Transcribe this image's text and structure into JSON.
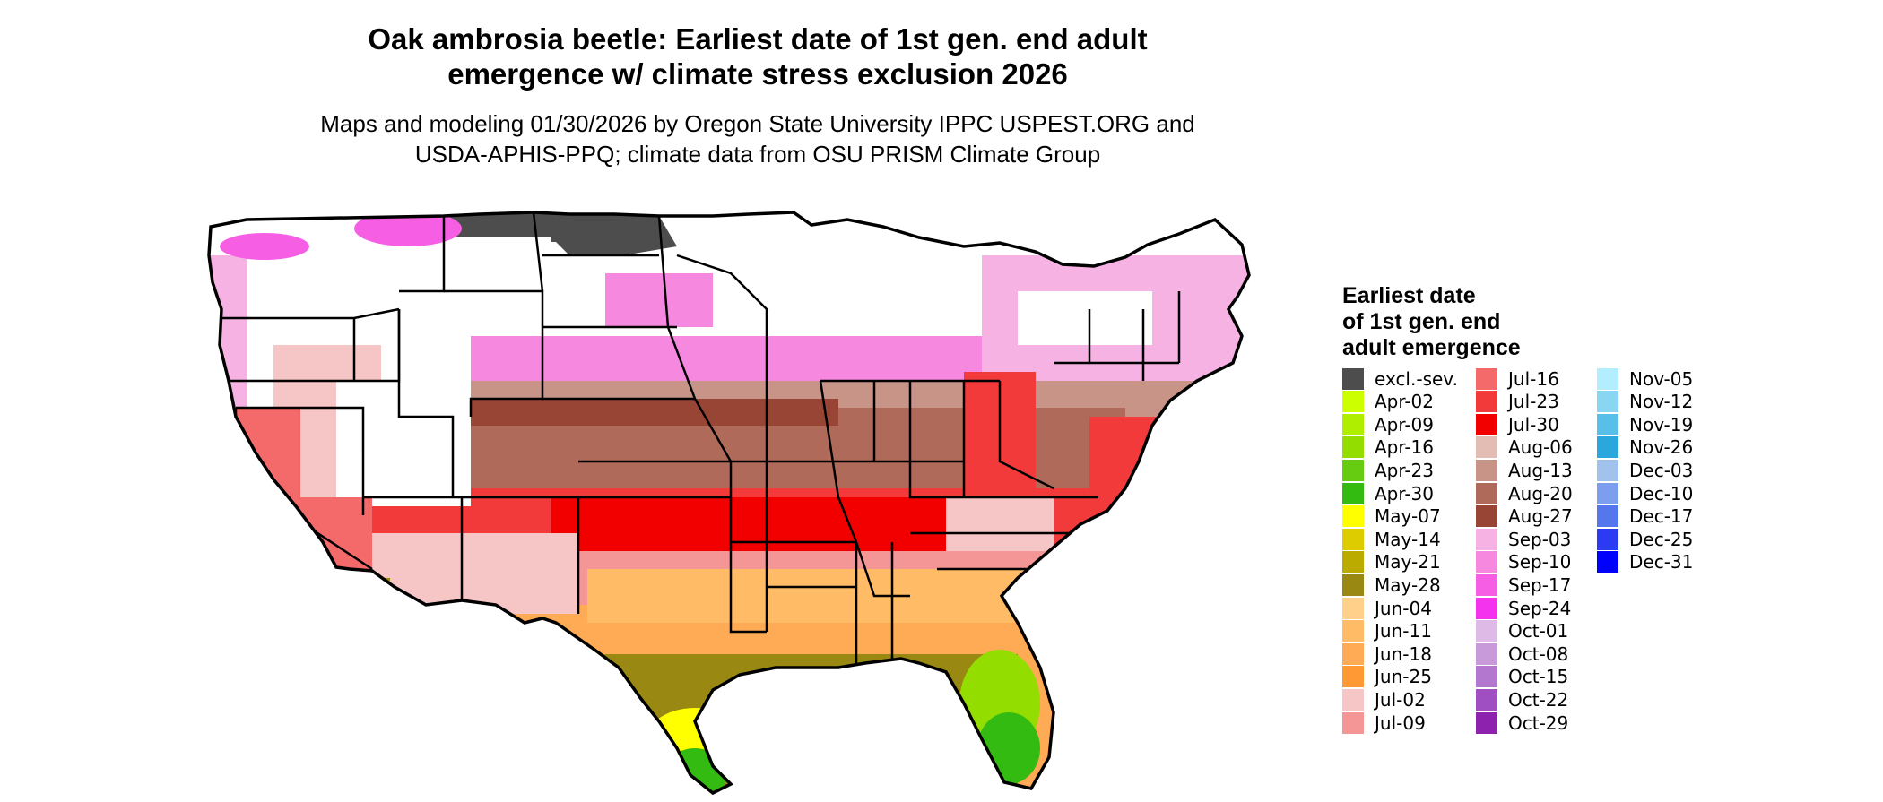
{
  "title": [
    "Oak ambrosia beetle: Earliest date of 1st gen. end adult",
    "emergence w/ climate stress exclusion 2026"
  ],
  "subtitle": [
    "Maps and modeling 01/30/2026 by Oregon State University IPPC USPEST.ORG and",
    "USDA-APHIS-PPQ; climate data from OSU PRISM Climate Group"
  ],
  "legend": {
    "title": [
      "Earliest date",
      "of 1st gen. end",
      "adult emergence"
    ],
    "items": [
      {
        "label": "excl.-sev.",
        "color": "#4d4d4d"
      },
      {
        "label": "Apr-02",
        "color": "#ccff00"
      },
      {
        "label": "Apr-09",
        "color": "#b0ee00"
      },
      {
        "label": "Apr-16",
        "color": "#94dd00"
      },
      {
        "label": "Apr-23",
        "color": "#66cc11"
      },
      {
        "label": "Apr-30",
        "color": "#33bb11"
      },
      {
        "label": "May-07",
        "color": "#ffff00"
      },
      {
        "label": "May-14",
        "color": "#ddcc00"
      },
      {
        "label": "May-21",
        "color": "#bbaa00"
      },
      {
        "label": "May-28",
        "color": "#998811"
      },
      {
        "label": "Jun-04",
        "color": "#ffd08a"
      },
      {
        "label": "Jun-11",
        "color": "#ffbb66"
      },
      {
        "label": "Jun-18",
        "color": "#ffaa55"
      },
      {
        "label": "Jun-25",
        "color": "#ff9933"
      },
      {
        "label": "Jul-02",
        "color": "#f6c6c6"
      },
      {
        "label": "Jul-09",
        "color": "#f59696"
      },
      {
        "label": "Jul-16",
        "color": "#f46a6a"
      },
      {
        "label": "Jul-23",
        "color": "#f33a3a"
      },
      {
        "label": "Jul-30",
        "color": "#f20000"
      },
      {
        "label": "Aug-06",
        "color": "#e3bcb4"
      },
      {
        "label": "Aug-13",
        "color": "#c99488"
      },
      {
        "label": "Aug-20",
        "color": "#b06a5a"
      },
      {
        "label": "Aug-27",
        "color": "#984535"
      },
      {
        "label": "Sep-03",
        "color": "#f7b2e4"
      },
      {
        "label": "Sep-10",
        "color": "#f788e0"
      },
      {
        "label": "Sep-17",
        "color": "#f65ee4"
      },
      {
        "label": "Sep-24",
        "color": "#f333ee"
      },
      {
        "label": "Oct-01",
        "color": "#ddbbe6"
      },
      {
        "label": "Oct-08",
        "color": "#c99ad9"
      },
      {
        "label": "Oct-15",
        "color": "#b377cf"
      },
      {
        "label": "Oct-22",
        "color": "#9f4fc2"
      },
      {
        "label": "Oct-29",
        "color": "#8c22ae"
      },
      {
        "label": "Nov-05",
        "color": "#b3eeff"
      },
      {
        "label": "Nov-12",
        "color": "#88d6f2"
      },
      {
        "label": "Nov-19",
        "color": "#58bfe8"
      },
      {
        "label": "Nov-26",
        "color": "#2aa8dd"
      },
      {
        "label": "Dec-03",
        "color": "#a2c2ee"
      },
      {
        "label": "Dec-10",
        "color": "#7c9eee"
      },
      {
        "label": "Dec-17",
        "color": "#5577ee"
      },
      {
        "label": "Dec-25",
        "color": "#2b3bf4"
      },
      {
        "label": "Dec-31",
        "color": "#0000ff"
      }
    ]
  }
}
